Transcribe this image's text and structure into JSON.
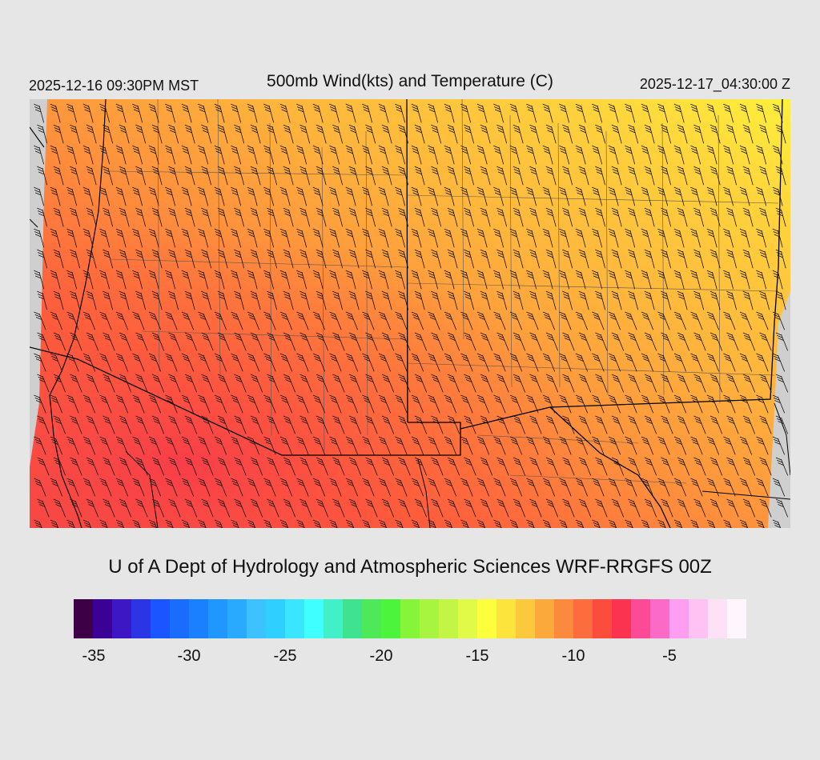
{
  "header": {
    "local_time": "2025-12-16 09:30PM MST",
    "title": "500mb Wind(kts) and Temperature (C)",
    "valid_time": "2025-12-17_04:30:00 Z"
  },
  "credit": "U of A Dept of Hydrology and Atmospheric Sciences WRF-RRGFS 00Z",
  "colorbar": {
    "colors": [
      "#3d0046",
      "#3b0096",
      "#3e17c4",
      "#2b35e6",
      "#1a55ff",
      "#1a6cff",
      "#1b80ff",
      "#2097ff",
      "#2aaaff",
      "#3ec2ff",
      "#2fd0ff",
      "#3ae6ff",
      "#40ffff",
      "#3ff0c8",
      "#3fe38f",
      "#4ee95a",
      "#4cf43b",
      "#86f53a",
      "#a7f441",
      "#c2f545",
      "#e0fa47",
      "#fbff3c",
      "#fce43c",
      "#fcc83c",
      "#fca93b",
      "#fc8a3c",
      "#fc6c3c",
      "#fc4d3c",
      "#fc3350",
      "#fc4a96",
      "#fc6ac8",
      "#ff9df0",
      "#ffc2f2",
      "#ffe1f6",
      "#fff5fc"
    ],
    "tick_labels": [
      "-35",
      "-30",
      "-25",
      "-20",
      "-15",
      "-10",
      "-5"
    ]
  },
  "map": {
    "temperature_palette": {
      "coldest": "#f03c4a",
      "cold": "#ff5a3c",
      "mid": "#ff8c3c",
      "warm": "#ffb43c",
      "warmer": "#ffd23c",
      "warmest": "#fff03c"
    },
    "wind_barb_color": "#111111",
    "border_color": "#000000",
    "county_color": "#555555",
    "no_data_color": "#cfcfcf"
  }
}
